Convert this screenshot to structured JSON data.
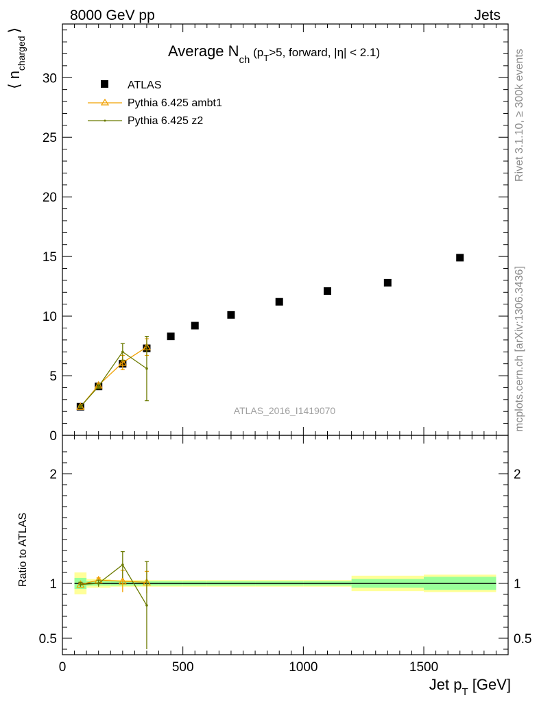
{
  "header": {
    "left_label": "8000 GeV pp",
    "right_label": "Jets"
  },
  "side_labels": {
    "rivet": "Rivet 3.1.10, ≥ 300k events",
    "mcplots": "mcplots.cern.ch [arXiv:1306.3436]"
  },
  "chart_data": {
    "type": "scatter",
    "title_main": "Average N",
    "title_sub": "ch",
    "title_rest_a": " (p",
    "title_rest_sub": "T",
    "title_rest_b": ">5, forward, |η| < 2.1)",
    "watermark": "ATLAS_2016_I1419070",
    "xlabel_main": "Jet p",
    "xlabel_sub": "T",
    "xlabel_unit": " [GeV]",
    "ylabel_main": "⟨ n",
    "ylabel_sub": "charged",
    "ylabel_end": "⟩",
    "ratio_ylabel": "Ratio to ATLAS",
    "xlim": [
      0,
      1850
    ],
    "ylim": [
      0,
      34.5
    ],
    "ratio_ylim": [
      0.35,
      2.35
    ],
    "x_ticks": [
      0,
      500,
      1000,
      1500
    ],
    "y_ticks": [
      0,
      5,
      10,
      15,
      20,
      25,
      30
    ],
    "ratio_ticks": [
      0.5,
      1,
      2
    ],
    "series": [
      {
        "name": "ATLAS",
        "color": "#000000",
        "marker": "square",
        "x": [
          75,
          150,
          250,
          350,
          450,
          550,
          700,
          900,
          1100,
          1350,
          1650
        ],
        "xlow": [
          50,
          100,
          200,
          300,
          400,
          500,
          600,
          800,
          1000,
          1200,
          1500
        ],
        "xhigh": [
          100,
          200,
          300,
          400,
          500,
          600,
          800,
          1000,
          1200,
          1500,
          1800
        ],
        "y": [
          2.4,
          4.1,
          6.0,
          7.3,
          8.3,
          9.2,
          10.1,
          11.2,
          12.1,
          12.8,
          14.9
        ]
      },
      {
        "name": "Pythia 6.425 ambt1",
        "color": "#f0a000",
        "marker": "triangle",
        "x": [
          75,
          150,
          250,
          350
        ],
        "y": [
          2.4,
          4.2,
          6.1,
          7.4
        ],
        "yerr": [
          0.08,
          0.12,
          0.6,
          0.7
        ]
      },
      {
        "name": "Pythia 6.425 z2",
        "color": "#6b7a00",
        "marker": "dot",
        "x": [
          75,
          150,
          250,
          350
        ],
        "y": [
          2.4,
          4.1,
          7.0,
          5.6
        ],
        "yerr": [
          0.08,
          0.15,
          0.7,
          2.7
        ]
      }
    ],
    "ratio": {
      "band_inner": [
        0.05,
        0.02,
        0.02,
        0.02,
        0.02,
        0.02,
        0.02,
        0.02,
        0.02,
        0.04,
        0.06
      ],
      "band_outer": [
        0.1,
        0.04,
        0.03,
        0.03,
        0.03,
        0.03,
        0.03,
        0.03,
        0.03,
        0.07,
        0.08
      ],
      "series": [
        {
          "name": "Pythia 6.425 ambt1",
          "y": [
            0.99,
            1.03,
            1.02,
            1.01
          ],
          "yerr": [
            0.02,
            0.02,
            0.1,
            0.1
          ]
        },
        {
          "name": "Pythia 6.425 z2",
          "y": [
            0.99,
            1.0,
            1.17,
            0.8
          ],
          "yerr": [
            0.02,
            0.03,
            0.12,
            0.4
          ]
        }
      ]
    }
  }
}
